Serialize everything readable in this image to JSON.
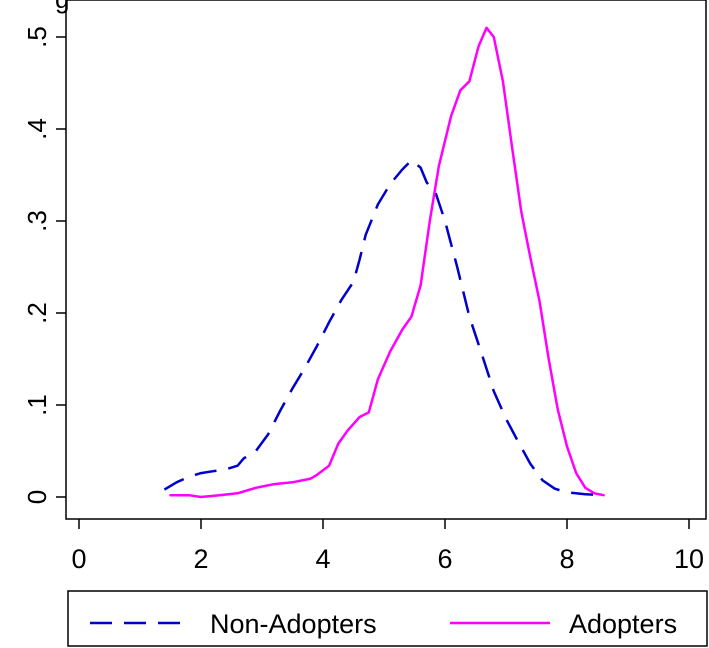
{
  "chart_data": {
    "type": "line",
    "title": "g",
    "xlabel": "",
    "ylabel": "",
    "xlim": [
      0,
      10
    ],
    "ylim": [
      0,
      0.5
    ],
    "x_ticks": [
      {
        "value": 0,
        "label": "0"
      },
      {
        "value": 2,
        "label": "2"
      },
      {
        "value": 4,
        "label": "4"
      },
      {
        "value": 6,
        "label": "6"
      },
      {
        "value": 8,
        "label": "8"
      },
      {
        "value": 10,
        "label": "10"
      }
    ],
    "y_ticks": [
      {
        "value": 0,
        "label": "0"
      },
      {
        "value": 0.1,
        "label": ".1"
      },
      {
        "value": 0.2,
        "label": ".2"
      },
      {
        "value": 0.3,
        "label": ".3"
      },
      {
        "value": 0.4,
        "label": ".4"
      },
      {
        "value": 0.5,
        "label": ".5"
      }
    ],
    "grid": false,
    "legend_position": "bottom",
    "series": [
      {
        "name": "Non-Adopters",
        "color": "#0000cc",
        "style": "dashed",
        "points": [
          [
            1.4,
            0.008
          ],
          [
            1.6,
            0.016
          ],
          [
            1.8,
            0.022
          ],
          [
            2.0,
            0.026
          ],
          [
            2.2,
            0.028
          ],
          [
            2.4,
            0.03
          ],
          [
            2.6,
            0.034
          ],
          [
            2.7,
            0.042
          ],
          [
            2.9,
            0.05
          ],
          [
            3.1,
            0.068
          ],
          [
            3.3,
            0.094
          ],
          [
            3.5,
            0.118
          ],
          [
            3.7,
            0.14
          ],
          [
            3.9,
            0.164
          ],
          [
            4.1,
            0.19
          ],
          [
            4.3,
            0.214
          ],
          [
            4.5,
            0.234
          ],
          [
            4.6,
            0.258
          ],
          [
            4.7,
            0.285
          ],
          [
            4.9,
            0.318
          ],
          [
            5.1,
            0.34
          ],
          [
            5.3,
            0.356
          ],
          [
            5.45,
            0.366
          ],
          [
            5.6,
            0.358
          ],
          [
            5.7,
            0.342
          ],
          [
            5.85,
            0.33
          ],
          [
            6.0,
            0.3
          ],
          [
            6.2,
            0.25
          ],
          [
            6.4,
            0.196
          ],
          [
            6.6,
            0.156
          ],
          [
            6.8,
            0.115
          ],
          [
            7.0,
            0.085
          ],
          [
            7.2,
            0.06
          ],
          [
            7.4,
            0.036
          ],
          [
            7.6,
            0.018
          ],
          [
            7.8,
            0.009
          ],
          [
            8.0,
            0.005
          ],
          [
            8.3,
            0.003
          ],
          [
            8.6,
            0.002
          ]
        ]
      },
      {
        "name": "Adopters",
        "color": "#ff00ff",
        "style": "solid",
        "points": [
          [
            1.5,
            0.002
          ],
          [
            1.8,
            0.002
          ],
          [
            2.0,
            0.0
          ],
          [
            2.3,
            0.002
          ],
          [
            2.6,
            0.004
          ],
          [
            2.9,
            0.01
          ],
          [
            3.2,
            0.014
          ],
          [
            3.5,
            0.016
          ],
          [
            3.8,
            0.02
          ],
          [
            3.9,
            0.024
          ],
          [
            4.1,
            0.034
          ],
          [
            4.25,
            0.058
          ],
          [
            4.4,
            0.072
          ],
          [
            4.6,
            0.087
          ],
          [
            4.75,
            0.092
          ],
          [
            4.9,
            0.128
          ],
          [
            5.1,
            0.158
          ],
          [
            5.3,
            0.182
          ],
          [
            5.45,
            0.196
          ],
          [
            5.6,
            0.23
          ],
          [
            5.75,
            0.3
          ],
          [
            5.9,
            0.36
          ],
          [
            6.1,
            0.414
          ],
          [
            6.25,
            0.442
          ],
          [
            6.4,
            0.452
          ],
          [
            6.55,
            0.49
          ],
          [
            6.68,
            0.51
          ],
          [
            6.8,
            0.5
          ],
          [
            6.95,
            0.452
          ],
          [
            7.1,
            0.38
          ],
          [
            7.25,
            0.31
          ],
          [
            7.4,
            0.26
          ],
          [
            7.55,
            0.213
          ],
          [
            7.7,
            0.15
          ],
          [
            7.85,
            0.095
          ],
          [
            8.0,
            0.055
          ],
          [
            8.15,
            0.026
          ],
          [
            8.3,
            0.01
          ],
          [
            8.45,
            0.004
          ],
          [
            8.6,
            0.002
          ]
        ]
      }
    ]
  }
}
